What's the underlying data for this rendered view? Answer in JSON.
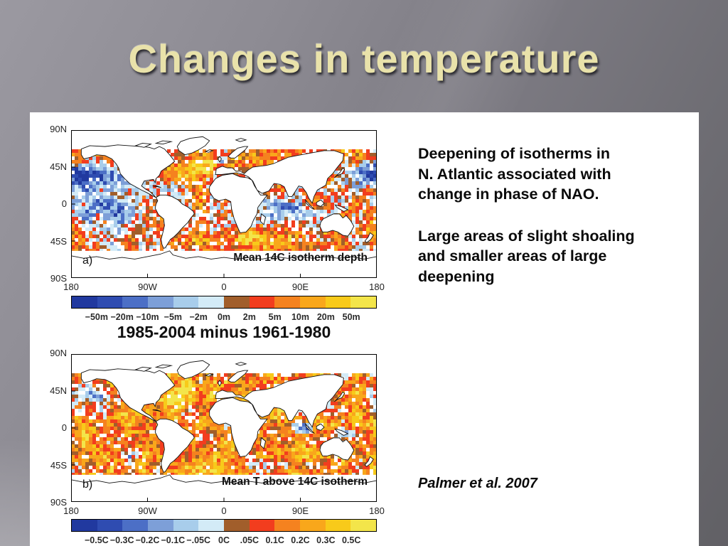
{
  "slide": {
    "title": "Changes in temperature",
    "background_color": "#7d7b83",
    "panel_color": "#ffffff",
    "title_color": "#e9e2aa"
  },
  "figures": {
    "comparison_title": "1985-2004 minus 1961-1980",
    "palette": [
      "#21399f",
      "#2f4cb1",
      "#4c6fc6",
      "#7d9fd8",
      "#a8cdeb",
      "#d3ebf7",
      "#a15e2b",
      "#f23d1e",
      "#f5821f",
      "#f9a71b",
      "#f8ca1a",
      "#f3e54a"
    ],
    "map_a": {
      "panel_label": "a)",
      "caption": "Mean 14C isotherm depth",
      "y_ticks": [
        "90N",
        "45N",
        "0",
        "45S",
        "90S"
      ],
      "x_ticks": [
        "180",
        "90W",
        "0",
        "90E",
        "180"
      ],
      "colorbar_labels": [
        "−50m",
        "−20m",
        "−10m",
        "−5m",
        "−2m",
        "0m",
        "2m",
        "5m",
        "10m",
        "20m",
        "50m"
      ]
    },
    "map_b": {
      "panel_label": "b)",
      "caption": "Mean T above 14C isotherm",
      "y_ticks": [
        "90N",
        "45N",
        "0",
        "45S",
        "90S"
      ],
      "x_ticks": [
        "180",
        "90W",
        "0",
        "90E",
        "180"
      ],
      "colorbar_labels": [
        "−0.5C",
        "−0.3C",
        "−0.2C",
        "−0.1C",
        "−.05C",
        "0C",
        ".05C",
        "0.1C",
        "0.2C",
        "0.3C",
        "0.5C"
      ]
    }
  },
  "notes": {
    "para1": "Deepening of isotherms in\nN. Atlantic associated with\nchange in phase of NAO.",
    "para2": "Large areas of slight shoaling\nand smaller areas of large\ndeepening",
    "citation": "Palmer et al. 2007"
  },
  "chart_data": [
    {
      "type": "heatmap",
      "panel": "a",
      "title": "Mean 14C isotherm depth",
      "comparison_period": "1985-2004 minus 1961-1980",
      "x_ticks": [
        "180",
        "90W",
        "0",
        "90E",
        "180"
      ],
      "y_ticks": [
        "90N",
        "45N",
        "0",
        "45S",
        "90S"
      ],
      "x_range_lon_deg": [
        -180,
        180
      ],
      "y_range_lat_deg": [
        -90,
        90
      ],
      "colorbar_bin_boundaries_m": [
        -50,
        -20,
        -10,
        -5,
        -2,
        0,
        2,
        5,
        10,
        20,
        50
      ],
      "colorbar_labels": [
        "−50m",
        "−20m",
        "−10m",
        "−5m",
        "−2m",
        "0m",
        "2m",
        "5m",
        "10m",
        "20m",
        "50m"
      ],
      "units": "meters (change in depth of 14C isotherm; blue = shoaling, orange/yellow = deepening)",
      "legend_position": "below",
      "grid": false,
      "pattern_summary": "Blue shoaling over much of the central and eastern Pacific and parts of the Indian Ocean; strong yellow/orange deepening across the North Atlantic and southern mid-latitude oceans; land and polar regions masked white."
    },
    {
      "type": "heatmap",
      "panel": "b",
      "title": "Mean T above 14C isotherm",
      "comparison_period": "1985-2004 minus 1961-1980",
      "x_ticks": [
        "180",
        "90W",
        "0",
        "90E",
        "180"
      ],
      "y_ticks": [
        "90N",
        "45N",
        "0",
        "45S",
        "90S"
      ],
      "x_range_lon_deg": [
        -180,
        180
      ],
      "y_range_lat_deg": [
        -90,
        90
      ],
      "colorbar_bin_boundaries_C": [
        -0.5,
        -0.3,
        -0.2,
        -0.1,
        -0.05,
        0,
        0.05,
        0.1,
        0.2,
        0.3,
        0.5
      ],
      "colorbar_labels": [
        "−0.5C",
        "−0.3C",
        "−0.2C",
        "−0.1C",
        "−.05C",
        "0C",
        ".05C",
        "0.1C",
        "0.2C",
        "0.3C",
        "0.5C"
      ],
      "units": "°C (change in mean temperature above the 14C isotherm; blue = cooling, orange/yellow = warming)",
      "legend_position": "below",
      "grid": false,
      "pattern_summary": "Predominantly orange/yellow warming across most ocean basins with scattered blue cooling patches in the northeast Pacific, eastern Indian Ocean and Southern Ocean."
    }
  ]
}
